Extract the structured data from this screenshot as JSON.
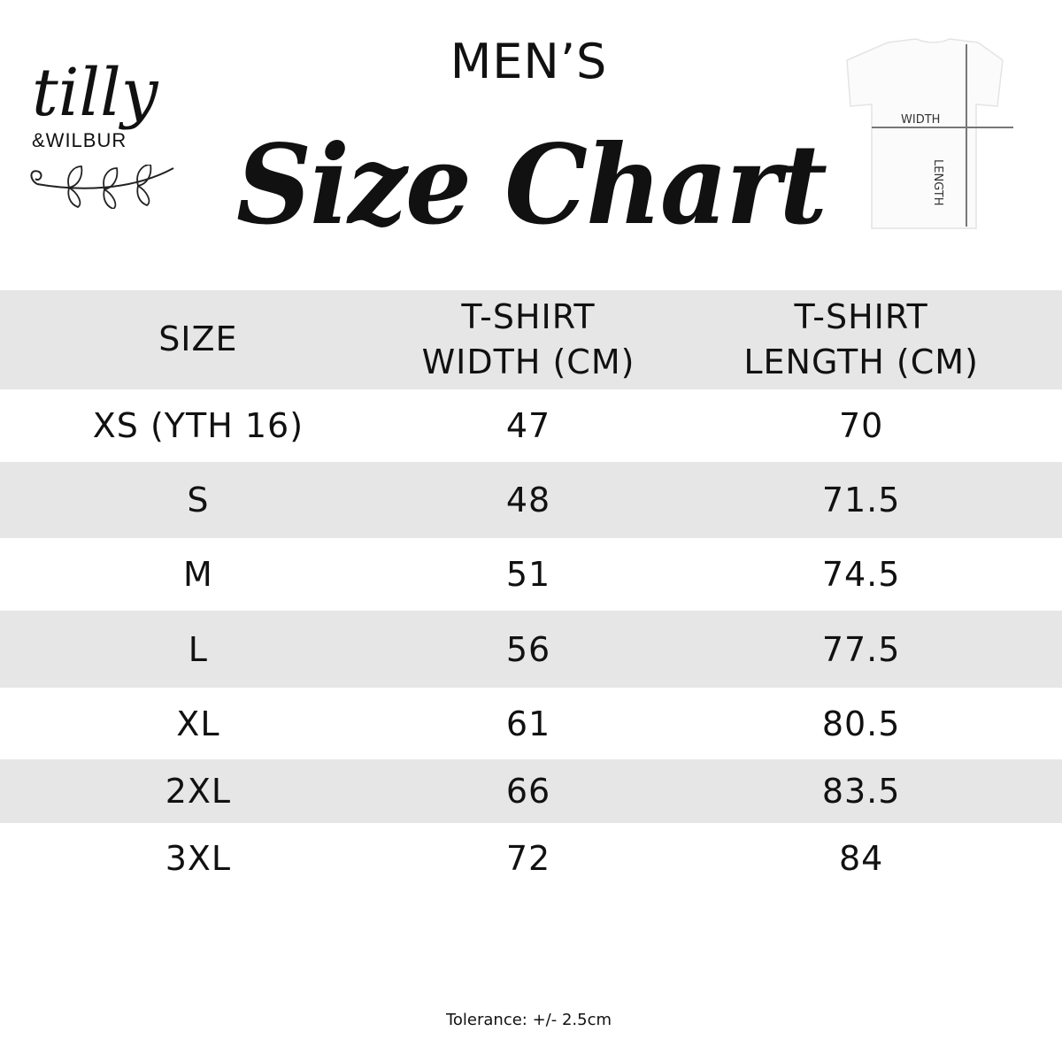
{
  "brand": {
    "logo_text_line1": "tilly",
    "logo_text_line2": "&WILBUR"
  },
  "header": {
    "subtitle": "MEN’S",
    "title": "Size Chart"
  },
  "diagram": {
    "width_label": "WIDTH",
    "length_label": "LENGTH",
    "icon": "t-shirt-icon"
  },
  "table": {
    "headers": [
      {
        "line1": "SIZE",
        "line2": ""
      },
      {
        "line1": "T-SHIRT",
        "line2": "WIDTH (CM)"
      },
      {
        "line1": "T-SHIRT",
        "line2": "LENGTH (CM)"
      }
    ],
    "rows": [
      [
        "XS (YTH 16)",
        "47",
        "70"
      ],
      [
        "S",
        "48",
        "71.5"
      ],
      [
        "M",
        "51",
        "74.5"
      ],
      [
        "L",
        "56",
        "77.5"
      ],
      [
        "XL",
        "61",
        "80.5"
      ],
      [
        "2XL",
        "66",
        "83.5"
      ],
      [
        "3XL",
        "72",
        "84"
      ]
    ]
  },
  "footer": {
    "tolerance": "Tolerance: +/- 2.5cm"
  },
  "colors": {
    "row_stripe": "#e6e6e6",
    "text": "#111111"
  }
}
